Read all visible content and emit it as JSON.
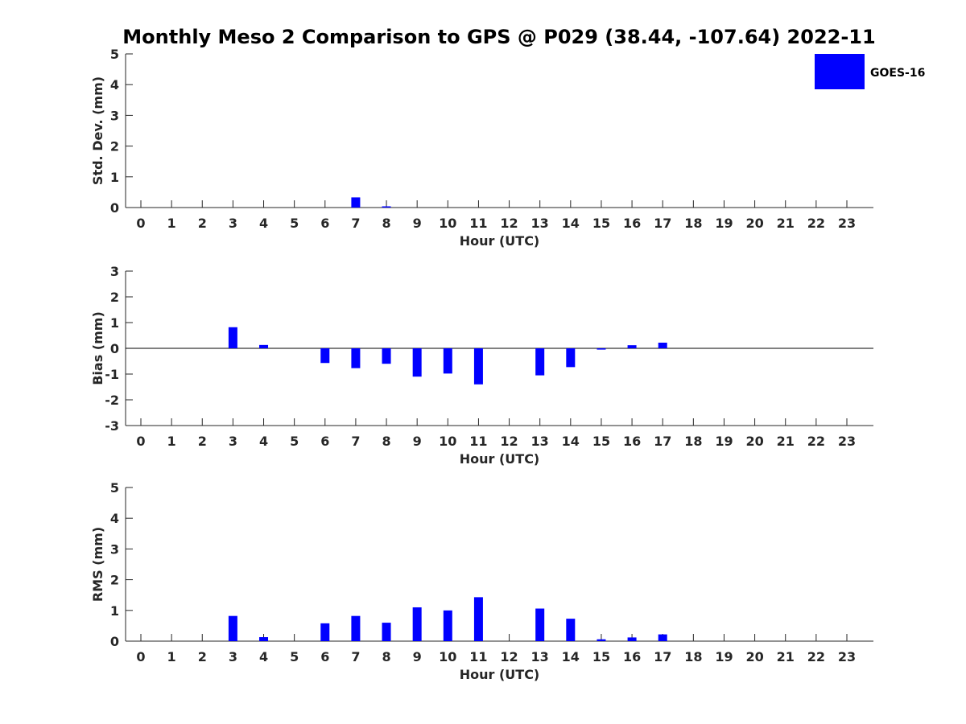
{
  "chart_data": [
    {
      "type": "bar",
      "title": "Monthly Meso 2 Comparison to GPS @ P029 (38.44, -107.64) 2022-11",
      "xlabel": "Hour (UTC)",
      "ylabel": "Std. Dev. (mm)",
      "categories": [
        "0",
        "1",
        "2",
        "3",
        "4",
        "5",
        "6",
        "7",
        "8",
        "9",
        "10",
        "11",
        "12",
        "13",
        "14",
        "15",
        "16",
        "17",
        "18",
        "19",
        "20",
        "21",
        "22",
        "23"
      ],
      "yticks": [
        "0",
        "1",
        "2",
        "3",
        "4",
        "5"
      ],
      "ylim": [
        0,
        5
      ],
      "series": [
        {
          "name": "GOES-16",
          "color": "#0000ff",
          "values": [
            null,
            null,
            null,
            0,
            0,
            null,
            0,
            0.33,
            0.03,
            0,
            0,
            0,
            null,
            0,
            0,
            0,
            0,
            0,
            null,
            null,
            null,
            null,
            null,
            null
          ]
        }
      ]
    },
    {
      "type": "bar",
      "xlabel": "Hour (UTC)",
      "ylabel": "Bias (mm)",
      "categories": [
        "0",
        "1",
        "2",
        "3",
        "4",
        "5",
        "6",
        "7",
        "8",
        "9",
        "10",
        "11",
        "12",
        "13",
        "14",
        "15",
        "16",
        "17",
        "18",
        "19",
        "20",
        "21",
        "22",
        "23"
      ],
      "yticks": [
        "-3",
        "-2",
        "-1",
        "0",
        "1",
        "2",
        "3"
      ],
      "ylim": [
        -3,
        3
      ],
      "series": [
        {
          "name": "GOES-16",
          "color": "#0000ff",
          "values": [
            null,
            null,
            null,
            0.82,
            0.13,
            null,
            -0.57,
            -0.77,
            -0.6,
            -1.1,
            -0.98,
            -1.4,
            null,
            -1.05,
            -0.73,
            -0.05,
            0.12,
            0.22,
            null,
            null,
            null,
            null,
            null,
            null
          ]
        }
      ]
    },
    {
      "type": "bar",
      "xlabel": "Hour (UTC)",
      "ylabel": "RMS (mm)",
      "categories": [
        "0",
        "1",
        "2",
        "3",
        "4",
        "5",
        "6",
        "7",
        "8",
        "9",
        "10",
        "11",
        "12",
        "13",
        "14",
        "15",
        "16",
        "17",
        "18",
        "19",
        "20",
        "21",
        "22",
        "23"
      ],
      "yticks": [
        "0",
        "1",
        "2",
        "3",
        "4",
        "5"
      ],
      "ylim": [
        0,
        5
      ],
      "series": [
        {
          "name": "GOES-16",
          "color": "#0000ff",
          "values": [
            null,
            null,
            null,
            0.82,
            0.13,
            null,
            0.58,
            0.82,
            0.6,
            1.1,
            1.0,
            1.43,
            null,
            1.06,
            0.73,
            0.06,
            0.12,
            0.22,
            null,
            null,
            null,
            null,
            null,
            null
          ]
        }
      ]
    }
  ],
  "legend": {
    "label": "GOES-16",
    "color": "#0000ff",
    "placement": "top-right"
  }
}
